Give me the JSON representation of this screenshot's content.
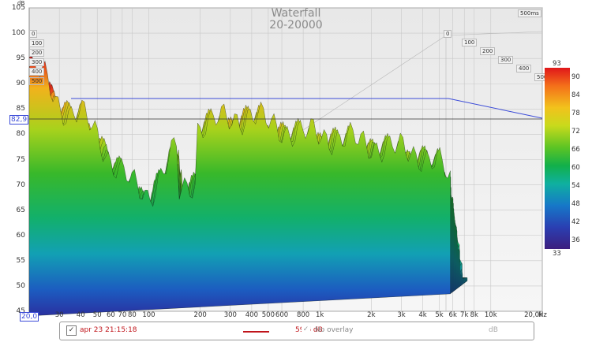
{
  "window": {
    "title": "Waterfall",
    "subtitle": "20-20000",
    "window_length": "500ms"
  },
  "axes": {
    "y_unit": "dB",
    "x_unit": "Hz",
    "y_ticks": [
      "105",
      "100",
      "95",
      "90",
      "85",
      "80",
      "75",
      "70",
      "65",
      "60",
      "55",
      "50",
      "45"
    ],
    "x_ticks": [
      "30",
      "40",
      "50",
      "60",
      "70",
      "80",
      "100",
      "200",
      "300",
      "400",
      "500",
      "600",
      "800",
      "1k",
      "2k",
      "3k",
      "4k",
      "5k",
      "6k",
      "7k",
      "8k",
      "10k",
      "20,0k"
    ],
    "x_readout": "20,0",
    "y_readout": "82,9",
    "time_ticks_left": [
      "0",
      "100",
      "200",
      "300",
      "400",
      "500"
    ],
    "time_ticks_right": [
      "0",
      "100",
      "200",
      "300",
      "400",
      "500"
    ]
  },
  "colorbar": {
    "max": "93",
    "min": "33",
    "labels": [
      "90",
      "84",
      "78",
      "72",
      "66",
      "60",
      "54",
      "48",
      "42",
      "36"
    ]
  },
  "legend": {
    "measurement_label": "apr 23 21:15:18",
    "measurement_color": "#c0141a",
    "measurement_value": "59,6 dB",
    "overlay_label": "No overlay",
    "overlay_unit": "dB",
    "measurement_checked": "✓",
    "overlay_checked": "✓"
  },
  "chart_data": {
    "type": "area",
    "title": "Waterfall",
    "subtitle": "20-20000",
    "xlabel": "Hz",
    "ylabel": "dB",
    "x_scale": "log",
    "xlim": [
      20,
      20000
    ],
    "ylim": [
      45,
      105
    ],
    "time_range_ms": [
      0,
      500
    ],
    "color_range_db": [
      33,
      93
    ],
    "cursor": {
      "x": 20,
      "y": 82.9
    },
    "front_slice": {
      "name": "0 ms",
      "x": [
        20,
        25,
        30,
        35,
        40,
        50,
        60,
        80,
        100,
        150,
        200,
        300,
        400,
        500,
        800,
        1000,
        2000,
        4000,
        5000,
        6000
      ],
      "y": [
        93,
        91,
        86,
        84,
        84,
        80,
        75,
        70,
        68,
        78,
        82,
        83,
        84,
        82,
        80,
        80,
        78,
        76,
        74,
        70
      ]
    }
  }
}
